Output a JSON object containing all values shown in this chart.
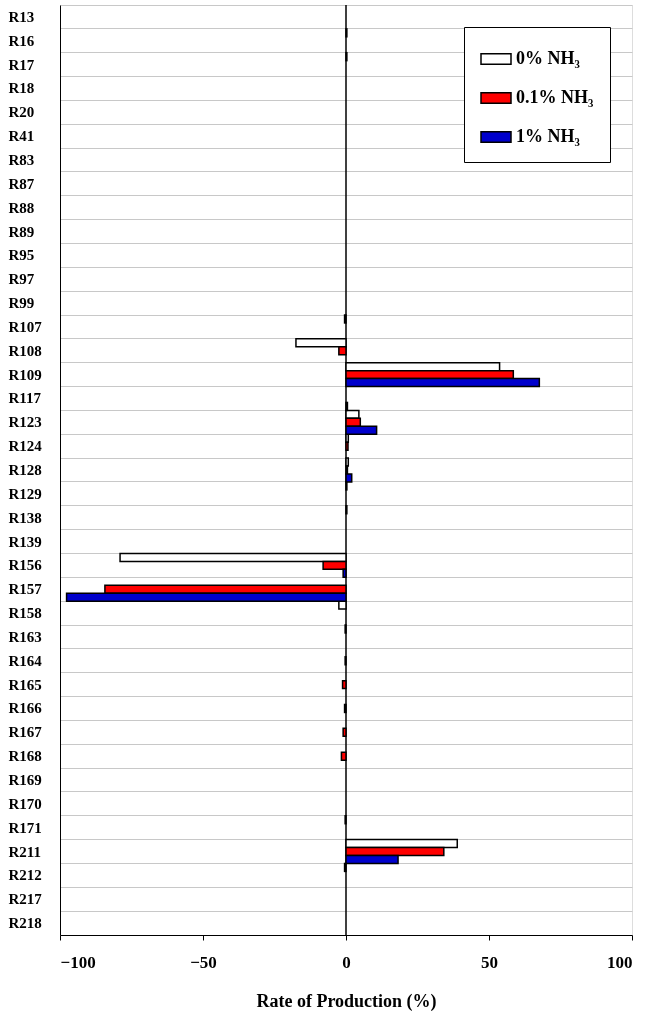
{
  "chart_data": {
    "type": "bar",
    "orientation": "horizontal",
    "xlabel": "Rate of Production (%)",
    "categories": [
      "R13",
      "R16",
      "R17",
      "R18",
      "R20",
      "R41",
      "R83",
      "R87",
      "R88",
      "R89",
      "R95",
      "R97",
      "R99",
      "R107",
      "R108",
      "R109",
      "R117",
      "R123",
      "R124",
      "R128",
      "R129",
      "R138",
      "R139",
      "R156",
      "R157",
      "R158",
      "R163",
      "R164",
      "R165",
      "R166",
      "R167",
      "R168",
      "R169",
      "R170",
      "R171",
      "R211",
      "R212",
      "R217",
      "R218"
    ],
    "series": [
      {
        "name": "0% NH₃",
        "color": "#ffffff",
        "values": [
          null,
          0.3,
          0.3,
          null,
          null,
          null,
          null,
          null,
          null,
          null,
          null,
          null,
          null,
          -0.5,
          -17.5,
          53.7,
          null,
          4.5,
          0.8,
          0.8,
          0.3,
          0.3,
          null,
          -79,
          null,
          -2.5,
          -0.3,
          null,
          null,
          null,
          null,
          null,
          null,
          null,
          -0.3,
          38.9,
          -0.5,
          null,
          null
        ]
      },
      {
        "name": "0.1% NH₃",
        "color": "#ff0000",
        "values": [
          null,
          null,
          null,
          null,
          null,
          null,
          null,
          null,
          null,
          null,
          null,
          null,
          null,
          null,
          -2.5,
          58.5,
          null,
          5,
          0.7,
          0.5,
          null,
          null,
          null,
          -8,
          -84.3,
          null,
          null,
          -0.3,
          -1.2,
          -0.5,
          -1,
          -1.6,
          null,
          null,
          null,
          34.2,
          null,
          null,
          null
        ]
      },
      {
        "name": "1% NH₃",
        "color": "#0000cc",
        "values": [
          null,
          null,
          null,
          null,
          null,
          null,
          null,
          null,
          null,
          null,
          null,
          null,
          null,
          null,
          null,
          67.6,
          0.5,
          10.7,
          null,
          2,
          null,
          null,
          null,
          -1,
          -97.7,
          null,
          null,
          null,
          null,
          null,
          null,
          null,
          null,
          null,
          null,
          18.2,
          null,
          null,
          null
        ]
      }
    ],
    "xlim": [
      -100,
      100
    ],
    "xticks": [
      -100,
      -50,
      0,
      50,
      100
    ],
    "ref_lines": [
      {
        "axis": "x",
        "value": 0
      }
    ],
    "grid": "y",
    "legend": "top right"
  }
}
